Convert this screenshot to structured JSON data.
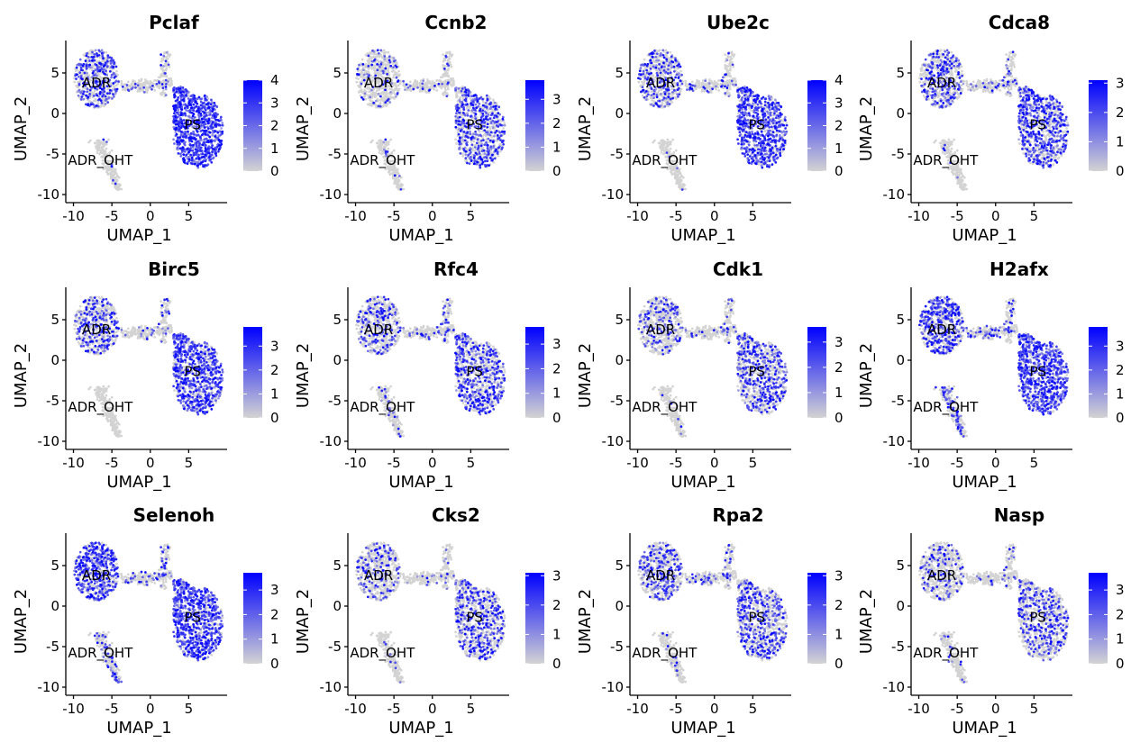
{
  "chart_data": [
    {
      "type": "scatter",
      "title": "Pclaf",
      "xlabel": "UMAP_1",
      "ylabel": "UMAP_2",
      "xlim": [
        -11,
        10
      ],
      "ylim": [
        -11,
        9
      ],
      "xticks": [
        -10,
        -5,
        0,
        5
      ],
      "xtick_labels": [
        "-10",
        "-5",
        "0",
        "5"
      ],
      "yticks": [
        -10,
        -5,
        0,
        5
      ],
      "ytick_labels": [
        "-10",
        "-5",
        "0",
        "5"
      ],
      "cluster_labels": [
        {
          "text": "ADR",
          "x": -7,
          "y": 3.8
        },
        {
          "text": "PS",
          "x": 5.5,
          "y": -1.4
        },
        {
          "text": "ADR_OHT",
          "x": -6.5,
          "y": -5.8
        }
      ],
      "legend": {
        "min": 0,
        "max": 4,
        "ticks": [
          0,
          1,
          2,
          3,
          4
        ],
        "tick_labels": [
          "0",
          "1",
          "2",
          "3",
          "4"
        ],
        "low_color": "#d3d3d3",
        "high_color": "#0000ff"
      },
      "expression": {
        "ADR": 0.45,
        "PS": 0.95,
        "ADR_OHT": 0.02,
        "bridge": 0.15
      }
    },
    {
      "type": "scatter",
      "title": "Ccnb2",
      "xlabel": "UMAP_1",
      "ylabel": "UMAP_2",
      "xlim": [
        -11,
        10
      ],
      "ylim": [
        -11,
        9
      ],
      "xticks": [
        -10,
        -5,
        0,
        5
      ],
      "xtick_labels": [
        "-10",
        "-5",
        "0",
        "5"
      ],
      "yticks": [
        -10,
        -5,
        0,
        5
      ],
      "ytick_labels": [
        "-10",
        "-5",
        "0",
        "5"
      ],
      "cluster_labels": [
        {
          "text": "ADR",
          "x": -7,
          "y": 3.8
        },
        {
          "text": "PS",
          "x": 5.5,
          "y": -1.4
        },
        {
          "text": "ADR_OHT",
          "x": -6.5,
          "y": -5.8
        }
      ],
      "legend": {
        "min": 0,
        "max": 3.8,
        "ticks": [
          0,
          1,
          2,
          3
        ],
        "tick_labels": [
          "0",
          "1",
          "2",
          "3"
        ],
        "low_color": "#d3d3d3",
        "high_color": "#0000ff"
      },
      "expression": {
        "ADR": 0.15,
        "PS": 0.5,
        "ADR_OHT": 0.02,
        "bridge": 0.08
      }
    },
    {
      "type": "scatter",
      "title": "Ube2c",
      "xlabel": "UMAP_1",
      "ylabel": "UMAP_2",
      "xlim": [
        -11,
        10
      ],
      "ylim": [
        -11,
        9
      ],
      "xticks": [
        -10,
        -5,
        0,
        5
      ],
      "xtick_labels": [
        "-10",
        "-5",
        "0",
        "5"
      ],
      "yticks": [
        -10,
        -5,
        0,
        5
      ],
      "ytick_labels": [
        "-10",
        "-5",
        "0",
        "5"
      ],
      "cluster_labels": [
        {
          "text": "ADR",
          "x": -7,
          "y": 3.8
        },
        {
          "text": "PS",
          "x": 5.5,
          "y": -1.4
        },
        {
          "text": "ADR_OHT",
          "x": -6.5,
          "y": -5.8
        }
      ],
      "legend": {
        "min": 0,
        "max": 4,
        "ticks": [
          0,
          1,
          2,
          3,
          4
        ],
        "tick_labels": [
          "0",
          "1",
          "2",
          "3",
          "4"
        ],
        "low_color": "#d3d3d3",
        "high_color": "#0000ff"
      },
      "expression": {
        "ADR": 0.35,
        "PS": 0.7,
        "ADR_OHT": 0.02,
        "bridge": 0.15
      }
    },
    {
      "type": "scatter",
      "title": "Cdca8",
      "xlabel": "UMAP_1",
      "ylabel": "UMAP_2",
      "xlim": [
        -11,
        10
      ],
      "ylim": [
        -11,
        9
      ],
      "xticks": [
        -10,
        -5,
        0,
        5
      ],
      "xtick_labels": [
        "-10",
        "-5",
        "0",
        "5"
      ],
      "yticks": [
        -10,
        -5,
        0,
        5
      ],
      "ytick_labels": [
        "-10",
        "-5",
        "0",
        "5"
      ],
      "cluster_labels": [
        {
          "text": "ADR",
          "x": -7,
          "y": 3.8
        },
        {
          "text": "PS",
          "x": 5.5,
          "y": -1.4
        },
        {
          "text": "ADR_OHT",
          "x": -6.5,
          "y": -5.8
        }
      ],
      "legend": {
        "min": 0,
        "max": 3.1,
        "ticks": [
          0,
          1,
          2,
          3
        ],
        "tick_labels": [
          "0",
          "1",
          "2",
          "3"
        ],
        "low_color": "#d3d3d3",
        "high_color": "#0000ff"
      },
      "expression": {
        "ADR": 0.35,
        "PS": 0.55,
        "ADR_OHT": 0.02,
        "bridge": 0.12
      }
    },
    {
      "type": "scatter",
      "title": "Birc5",
      "xlabel": "UMAP_1",
      "ylabel": "UMAP_2",
      "xlim": [
        -11,
        10
      ],
      "ylim": [
        -11,
        9
      ],
      "xticks": [
        -10,
        -5,
        0,
        5
      ],
      "xtick_labels": [
        "-10",
        "-5",
        "0",
        "5"
      ],
      "yticks": [
        -10,
        -5,
        0,
        5
      ],
      "ytick_labels": [
        "-10",
        "-5",
        "0",
        "5"
      ],
      "cluster_labels": [
        {
          "text": "ADR",
          "x": -7,
          "y": 3.8
        },
        {
          "text": "PS",
          "x": 5.5,
          "y": -1.4
        },
        {
          "text": "ADR_OHT",
          "x": -6.5,
          "y": -5.8
        }
      ],
      "legend": {
        "min": 0,
        "max": 3.8,
        "ticks": [
          0,
          1,
          2,
          3
        ],
        "tick_labels": [
          "0",
          "1",
          "2",
          "3"
        ],
        "low_color": "#d3d3d3",
        "high_color": "#0000ff"
      },
      "expression": {
        "ADR": 0.4,
        "PS": 0.7,
        "ADR_OHT": 0.02,
        "bridge": 0.12
      }
    },
    {
      "type": "scatter",
      "title": "Rfc4",
      "xlabel": "UMAP_1",
      "ylabel": "UMAP_2",
      "xlim": [
        -11,
        10
      ],
      "ylim": [
        -11,
        9
      ],
      "xticks": [
        -10,
        -5,
        0,
        5
      ],
      "xtick_labels": [
        "-10",
        "-5",
        "0",
        "5"
      ],
      "yticks": [
        -10,
        -5,
        0,
        5
      ],
      "ytick_labels": [
        "-10",
        "-5",
        "0",
        "5"
      ],
      "cluster_labels": [
        {
          "text": "ADR",
          "x": -7,
          "y": 3.8
        },
        {
          "text": "PS",
          "x": 5.5,
          "y": -1.4
        },
        {
          "text": "ADR_OHT",
          "x": -6.5,
          "y": -5.8
        }
      ],
      "legend": {
        "min": 0,
        "max": 3.7,
        "ticks": [
          0,
          1,
          2,
          3
        ],
        "tick_labels": [
          "0",
          "1",
          "2",
          "3"
        ],
        "low_color": "#d3d3d3",
        "high_color": "#0000ff"
      },
      "expression": {
        "ADR": 0.3,
        "PS": 0.5,
        "ADR_OHT": 0.1,
        "bridge": 0.15
      }
    },
    {
      "type": "scatter",
      "title": "Cdk1",
      "xlabel": "UMAP_1",
      "ylabel": "UMAP_2",
      "xlim": [
        -11,
        10
      ],
      "ylim": [
        -11,
        9
      ],
      "xticks": [
        -10,
        -5,
        0,
        5
      ],
      "xtick_labels": [
        "-10",
        "-5",
        "0",
        "5"
      ],
      "yticks": [
        -10,
        -5,
        0,
        5
      ],
      "ytick_labels": [
        "-10",
        "-5",
        "0",
        "5"
      ],
      "cluster_labels": [
        {
          "text": "ADR",
          "x": -7,
          "y": 3.8
        },
        {
          "text": "PS",
          "x": 5.5,
          "y": -1.4
        },
        {
          "text": "ADR_OHT",
          "x": -6.5,
          "y": -5.8
        }
      ],
      "legend": {
        "min": 0,
        "max": 3.6,
        "ticks": [
          0,
          1,
          2,
          3
        ],
        "tick_labels": [
          "0",
          "1",
          "2",
          "3"
        ],
        "low_color": "#d3d3d3",
        "high_color": "#0000ff"
      },
      "expression": {
        "ADR": 0.25,
        "PS": 0.45,
        "ADR_OHT": 0.03,
        "bridge": 0.1
      }
    },
    {
      "type": "scatter",
      "title": "H2afx",
      "xlabel": "UMAP_1",
      "ylabel": "UMAP_2",
      "xlim": [
        -11,
        10
      ],
      "ylim": [
        -11,
        9
      ],
      "xticks": [
        -10,
        -5,
        0,
        5
      ],
      "xtick_labels": [
        "-10",
        "-5",
        "0",
        "5"
      ],
      "yticks": [
        -10,
        -5,
        0,
        5
      ],
      "ytick_labels": [
        "-10",
        "-5",
        "0",
        "5"
      ],
      "cluster_labels": [
        {
          "text": "ADR",
          "x": -7,
          "y": 3.8
        },
        {
          "text": "PS",
          "x": 5.5,
          "y": -1.4
        },
        {
          "text": "ADR_OHT",
          "x": -6.5,
          "y": -5.8
        }
      ],
      "legend": {
        "min": 0,
        "max": 3.8,
        "ticks": [
          0,
          1,
          2,
          3
        ],
        "tick_labels": [
          "0",
          "1",
          "2",
          "3"
        ],
        "low_color": "#d3d3d3",
        "high_color": "#0000ff"
      },
      "expression": {
        "ADR": 0.55,
        "PS": 0.75,
        "ADR_OHT": 0.35,
        "bridge": 0.2
      }
    },
    {
      "type": "scatter",
      "title": "Selenoh",
      "xlabel": "UMAP_1",
      "ylabel": "UMAP_2",
      "xlim": [
        -11,
        10
      ],
      "ylim": [
        -11,
        9
      ],
      "xticks": [
        -10,
        -5,
        0,
        5
      ],
      "xtick_labels": [
        "-10",
        "-5",
        "0",
        "5"
      ],
      "yticks": [
        -10,
        -5,
        0,
        5
      ],
      "ytick_labels": [
        "-10",
        "-5",
        "0",
        "5"
      ],
      "cluster_labels": [
        {
          "text": "ADR",
          "x": -7,
          "y": 3.8
        },
        {
          "text": "PS",
          "x": 5.5,
          "y": -1.4
        },
        {
          "text": "ADR_OHT",
          "x": -6.5,
          "y": -5.8
        }
      ],
      "legend": {
        "min": 0,
        "max": 3.7,
        "ticks": [
          0,
          1,
          2,
          3
        ],
        "tick_labels": [
          "0",
          "1",
          "2",
          "3"
        ],
        "low_color": "#d3d3d3",
        "high_color": "#0000ff"
      },
      "expression": {
        "ADR": 0.65,
        "PS": 0.75,
        "ADR_OHT": 0.2,
        "bridge": 0.2
      }
    },
    {
      "type": "scatter",
      "title": "Cks2",
      "xlabel": "UMAP_1",
      "ylabel": "UMAP_2",
      "xlim": [
        -11,
        10
      ],
      "ylim": [
        -11,
        9
      ],
      "xticks": [
        -10,
        -5,
        0,
        5
      ],
      "xtick_labels": [
        "-10",
        "-5",
        "0",
        "5"
      ],
      "yticks": [
        -10,
        -5,
        0,
        5
      ],
      "ytick_labels": [
        "-10",
        "-5",
        "0",
        "5"
      ],
      "cluster_labels": [
        {
          "text": "ADR",
          "x": -7,
          "y": 3.8
        },
        {
          "text": "PS",
          "x": 5.5,
          "y": -1.4
        },
        {
          "text": "ADR_OHT",
          "x": -6.5,
          "y": -5.8
        }
      ],
      "legend": {
        "min": 0,
        "max": 3.1,
        "ticks": [
          0,
          1,
          2,
          3
        ],
        "tick_labels": [
          "0",
          "1",
          "2",
          "3"
        ],
        "low_color": "#d3d3d3",
        "high_color": "#0000ff"
      },
      "expression": {
        "ADR": 0.25,
        "PS": 0.4,
        "ADR_OHT": 0.05,
        "bridge": 0.1
      }
    },
    {
      "type": "scatter",
      "title": "Rpa2",
      "xlabel": "UMAP_1",
      "ylabel": "UMAP_2",
      "xlim": [
        -11,
        10
      ],
      "ylim": [
        -11,
        9
      ],
      "xticks": [
        -10,
        -5,
        0,
        5
      ],
      "xtick_labels": [
        "-10",
        "-5",
        "0",
        "5"
      ],
      "yticks": [
        -10,
        -5,
        0,
        5
      ],
      "ytick_labels": [
        "-10",
        "-5",
        "0",
        "5"
      ],
      "cluster_labels": [
        {
          "text": "ADR",
          "x": -7,
          "y": 3.8
        },
        {
          "text": "PS",
          "x": 5.5,
          "y": -1.4
        },
        {
          "text": "ADR_OHT",
          "x": -6.5,
          "y": -5.8
        }
      ],
      "legend": {
        "min": 0,
        "max": 3.1,
        "ticks": [
          0,
          1,
          2,
          3
        ],
        "tick_labels": [
          "0",
          "1",
          "2",
          "3"
        ],
        "low_color": "#d3d3d3",
        "high_color": "#0000ff"
      },
      "expression": {
        "ADR": 0.3,
        "PS": 0.4,
        "ADR_OHT": 0.05,
        "bridge": 0.12
      }
    },
    {
      "type": "scatter",
      "title": "Nasp",
      "xlabel": "UMAP_1",
      "ylabel": "UMAP_2",
      "xlim": [
        -11,
        10
      ],
      "ylim": [
        -11,
        9
      ],
      "xticks": [
        -10,
        -5,
        0,
        5
      ],
      "xtick_labels": [
        "-10",
        "-5",
        "0",
        "5"
      ],
      "yticks": [
        -10,
        -5,
        0,
        5
      ],
      "ytick_labels": [
        "-10",
        "-5",
        "0",
        "5"
      ],
      "cluster_labels": [
        {
          "text": "ADR",
          "x": -7,
          "y": 3.8
        },
        {
          "text": "PS",
          "x": 5.5,
          "y": -1.4
        },
        {
          "text": "ADR_OHT",
          "x": -6.5,
          "y": -5.8
        }
      ],
      "legend": {
        "min": 0,
        "max": 3.7,
        "ticks": [
          0,
          1,
          2,
          3
        ],
        "tick_labels": [
          "0",
          "1",
          "2",
          "3"
        ],
        "low_color": "#d3d3d3",
        "high_color": "#0000ff"
      },
      "expression": {
        "ADR": 0.2,
        "PS": 0.35,
        "ADR_OHT": 0.05,
        "bridge": 0.1
      }
    }
  ]
}
